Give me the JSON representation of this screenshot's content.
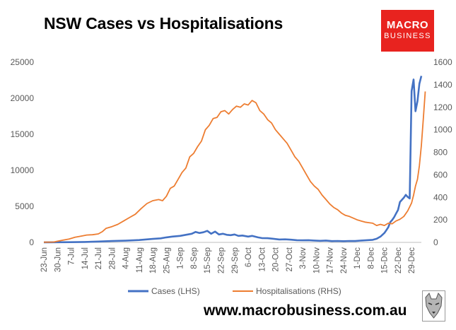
{
  "header": {
    "title": "NSW Cases vs Hospitalisations"
  },
  "logo": {
    "line1": "MACRO",
    "line2": "BUSINESS",
    "color": "#e8231f"
  },
  "footer": {
    "url": "www.macrobusiness.com.au"
  },
  "chart_data": {
    "type": "line",
    "title": "NSW Cases vs Hospitalisations",
    "x_labels": [
      "23-Jun",
      "30-Jun",
      "7-Jul",
      "14-Jul",
      "21-Jul",
      "28-Jul",
      "4-Aug",
      "11-Aug",
      "18-Aug",
      "25-Aug",
      "1-Sep",
      "8-Sep",
      "15-Sep",
      "22-Sep",
      "29-Sep",
      "6-Oct",
      "13-Oct",
      "20-Oct",
      "27-Oct",
      "3-Nov",
      "10-Nov",
      "17-Nov",
      "24-Nov",
      "1-Dec",
      "8-Dec",
      "15-Dec",
      "22-Dec",
      "29-Dec"
    ],
    "x_range_days": [
      0,
      194
    ],
    "y_left": {
      "min": 0,
      "max": 25000,
      "ticks": [
        0,
        5000,
        10000,
        15000,
        20000,
        25000
      ],
      "label": ""
    },
    "y_right": {
      "min": 0,
      "max": 1600,
      "ticks": [
        0,
        200,
        400,
        600,
        800,
        1000,
        1200,
        1400,
        1600
      ],
      "label": ""
    },
    "grid": false,
    "legend_position": "bottom",
    "series": [
      {
        "name": "Cases (LHS)",
        "axis": "left",
        "color": "#4472c4",
        "points": [
          [
            0,
            10
          ],
          [
            7,
            20
          ],
          [
            14,
            30
          ],
          [
            21,
            60
          ],
          [
            28,
            120
          ],
          [
            35,
            190
          ],
          [
            42,
            240
          ],
          [
            49,
            320
          ],
          [
            56,
            480
          ],
          [
            60,
            560
          ],
          [
            63,
            700
          ],
          [
            66,
            800
          ],
          [
            70,
            900
          ],
          [
            73,
            1050
          ],
          [
            76,
            1200
          ],
          [
            78,
            1450
          ],
          [
            80,
            1300
          ],
          [
            82,
            1400
          ],
          [
            84,
            1600
          ],
          [
            86,
            1200
          ],
          [
            88,
            1500
          ],
          [
            90,
            1100
          ],
          [
            92,
            1200
          ],
          [
            94,
            1050
          ],
          [
            96,
            1000
          ],
          [
            98,
            1100
          ],
          [
            100,
            900
          ],
          [
            102,
            950
          ],
          [
            105,
            800
          ],
          [
            107,
            900
          ],
          [
            110,
            700
          ],
          [
            112,
            600
          ],
          [
            115,
            580
          ],
          [
            118,
            500
          ],
          [
            121,
            400
          ],
          [
            124,
            420
          ],
          [
            127,
            370
          ],
          [
            130,
            300
          ],
          [
            133,
            280
          ],
          [
            136,
            300
          ],
          [
            139,
            250
          ],
          [
            142,
            220
          ],
          [
            145,
            250
          ],
          [
            148,
            180
          ],
          [
            151,
            200
          ],
          [
            154,
            170
          ],
          [
            157,
            200
          ],
          [
            160,
            190
          ],
          [
            163,
            250
          ],
          [
            166,
            300
          ],
          [
            169,
            350
          ],
          [
            171,
            500
          ],
          [
            173,
            800
          ],
          [
            175,
            1300
          ],
          [
            176,
            1700
          ],
          [
            177,
            2100
          ],
          [
            178,
            2800
          ],
          [
            179,
            3100
          ],
          [
            180,
            3500
          ],
          [
            181,
            4000
          ],
          [
            182,
            4500
          ],
          [
            183,
            5600
          ],
          [
            184,
            5900
          ],
          [
            185,
            6200
          ],
          [
            186,
            6600
          ],
          [
            187,
            6300
          ],
          [
            188,
            6100
          ],
          [
            189,
            21000
          ],
          [
            190,
            22600
          ],
          [
            191,
            18200
          ],
          [
            192,
            19600
          ],
          [
            193,
            22000
          ],
          [
            194,
            23100
          ]
        ]
      },
      {
        "name": "Hospitalisations (RHS)",
        "axis": "right",
        "color": "#ed7d31",
        "points": [
          [
            0,
            2
          ],
          [
            5,
            3
          ],
          [
            7,
            10
          ],
          [
            10,
            20
          ],
          [
            13,
            30
          ],
          [
            16,
            45
          ],
          [
            19,
            55
          ],
          [
            22,
            65
          ],
          [
            25,
            68
          ],
          [
            28,
            75
          ],
          [
            30,
            95
          ],
          [
            32,
            125
          ],
          [
            35,
            140
          ],
          [
            38,
            160
          ],
          [
            41,
            190
          ],
          [
            44,
            220
          ],
          [
            47,
            250
          ],
          [
            50,
            300
          ],
          [
            53,
            345
          ],
          [
            56,
            370
          ],
          [
            59,
            380
          ],
          [
            61,
            370
          ],
          [
            63,
            410
          ],
          [
            65,
            480
          ],
          [
            67,
            500
          ],
          [
            69,
            560
          ],
          [
            71,
            620
          ],
          [
            73,
            660
          ],
          [
            75,
            760
          ],
          [
            77,
            790
          ],
          [
            79,
            850
          ],
          [
            81,
            900
          ],
          [
            83,
            1000
          ],
          [
            85,
            1040
          ],
          [
            87,
            1100
          ],
          [
            89,
            1110
          ],
          [
            91,
            1160
          ],
          [
            93,
            1170
          ],
          [
            95,
            1140
          ],
          [
            97,
            1180
          ],
          [
            99,
            1210
          ],
          [
            101,
            1200
          ],
          [
            103,
            1230
          ],
          [
            105,
            1220
          ],
          [
            107,
            1260
          ],
          [
            109,
            1240
          ],
          [
            111,
            1170
          ],
          [
            113,
            1140
          ],
          [
            115,
            1090
          ],
          [
            117,
            1060
          ],
          [
            119,
            1000
          ],
          [
            121,
            960
          ],
          [
            123,
            920
          ],
          [
            125,
            880
          ],
          [
            127,
            820
          ],
          [
            129,
            760
          ],
          [
            131,
            720
          ],
          [
            133,
            660
          ],
          [
            135,
            600
          ],
          [
            137,
            540
          ],
          [
            139,
            500
          ],
          [
            141,
            470
          ],
          [
            143,
            420
          ],
          [
            145,
            380
          ],
          [
            147,
            340
          ],
          [
            149,
            310
          ],
          [
            151,
            290
          ],
          [
            153,
            260
          ],
          [
            155,
            240
          ],
          [
            157,
            230
          ],
          [
            159,
            215
          ],
          [
            161,
            200
          ],
          [
            163,
            190
          ],
          [
            165,
            180
          ],
          [
            167,
            175
          ],
          [
            169,
            170
          ],
          [
            171,
            150
          ],
          [
            173,
            160
          ],
          [
            175,
            150
          ],
          [
            177,
            170
          ],
          [
            179,
            165
          ],
          [
            181,
            190
          ],
          [
            183,
            205
          ],
          [
            185,
            230
          ],
          [
            187,
            280
          ],
          [
            189,
            350
          ],
          [
            190,
            420
          ],
          [
            191,
            500
          ],
          [
            192,
            560
          ],
          [
            193,
            680
          ],
          [
            194,
            860
          ],
          [
            195,
            1100
          ],
          [
            196,
            1340
          ]
        ]
      }
    ]
  }
}
